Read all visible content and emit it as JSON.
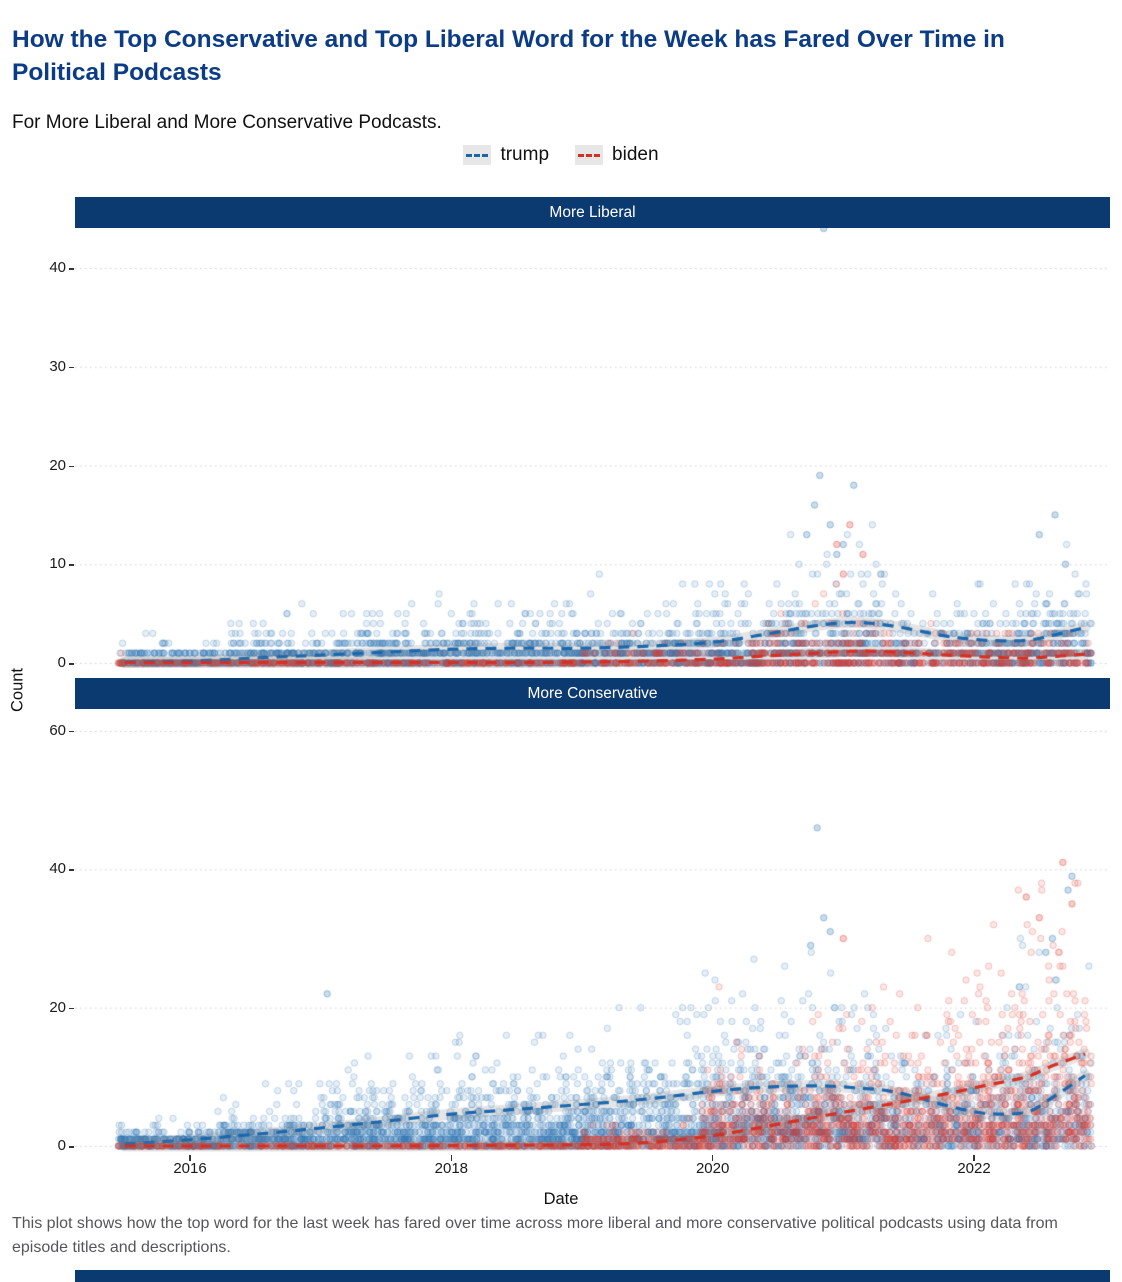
{
  "header": {
    "title": "How the Top Conservative and Top Liberal Word for the Week has Fared Over Time in Political Podcasts",
    "subtitle": "For More Liberal and More Conservative Podcasts."
  },
  "legend": {
    "items": [
      {
        "label": "trump",
        "color": "#1b67ae"
      },
      {
        "label": "biden",
        "color": "#d62f23"
      }
    ]
  },
  "caption": "This plot shows how the top word for the last week has fared over time across more liberal and more conservative political podcasts using data from episode titles and descriptions.",
  "theme": {
    "navy": "#0b3a70",
    "title_color": "#0b3c85",
    "caption_color": "#56565a",
    "grid_color": "#cfcfcf",
    "band_color": "rgba(125,125,125,0.20)"
  },
  "chart_data": {
    "type": "scatter",
    "title": "How the Top Conservative and Top Liberal Word for the Week has Fared Over Time in Political Podcasts",
    "subtitle": "For More Liberal and More Conservative Podcasts.",
    "xlabel": "Date",
    "ylabel": "Count",
    "legend_position": "top",
    "grid": "horizontal-dotted",
    "x_ticks": [
      2016,
      2018,
      2020,
      2022
    ],
    "x_domain": [
      2015.12,
      2023.04
    ],
    "point_colors": {
      "trump": "#2f76b3",
      "biden": "#df382d"
    },
    "line_colors": {
      "trump": "#1b67ae",
      "biden": "#d62f23"
    },
    "trend_x": [
      2015.5,
      2016,
      2016.5,
      2017,
      2017.5,
      2018,
      2018.5,
      2019,
      2019.5,
      2020,
      2020.4,
      2020.8,
      2021.1,
      2021.4,
      2021.8,
      2022.1,
      2022.4,
      2022.6,
      2022.85
    ],
    "facets": [
      {
        "label": "More Liberal",
        "y_ticks": [
          0,
          10,
          20,
          30,
          40
        ],
        "y_max": 44,
        "series": [
          {
            "name": "trump",
            "trend_y": [
              0.1,
              0.2,
              0.5,
              0.8,
              1.1,
              1.4,
              1.5,
              1.5,
              1.7,
              2.1,
              2.9,
              3.8,
              4.1,
              3.7,
              2.7,
              2.3,
              2.3,
              2.8,
              3.6
            ],
            "epochs": [
              {
                "x0": 2015.45,
                "x1": 2016.3,
                "n": 260,
                "mean": 0.5,
                "max": 3
              },
              {
                "x0": 2016.3,
                "x1": 2017.2,
                "n": 320,
                "mean": 0.9,
                "max": 6
              },
              {
                "x0": 2017.2,
                "x1": 2018.4,
                "n": 480,
                "mean": 1.3,
                "max": 8
              },
              {
                "x0": 2018.4,
                "x1": 2019.6,
                "n": 460,
                "mean": 1.4,
                "max": 9
              },
              {
                "x0": 2019.6,
                "x1": 2020.4,
                "n": 360,
                "mean": 1.5,
                "max": 8
              },
              {
                "x0": 2020.4,
                "x1": 2021.4,
                "n": 420,
                "mean": 2.6,
                "max": 16
              },
              {
                "x0": 2021.4,
                "x1": 2022.3,
                "n": 300,
                "mean": 1.6,
                "max": 9
              },
              {
                "x0": 2022.3,
                "x1": 2022.9,
                "n": 260,
                "mean": 2.2,
                "max": 12
              }
            ],
            "outliers": [
              [
                2020.82,
                19
              ],
              [
                2021.08,
                18
              ],
              [
                2020.78,
                16
              ],
              [
                2020.9,
                14
              ],
              [
                2020.72,
                13
              ],
              [
                2022.62,
                15
              ],
              [
                2022.5,
                13
              ],
              [
                2021.0,
                12
              ],
              [
                2020.95,
                11
              ],
              [
                2022.7,
                10
              ],
              [
                2020.85,
                44
              ]
            ]
          },
          {
            "name": "biden",
            "trend_y": [
              0.05,
              0.05,
              0.05,
              0.05,
              0.05,
              0.05,
              0.05,
              0.1,
              0.2,
              0.4,
              0.7,
              1.0,
              1.2,
              1.1,
              0.8,
              0.6,
              0.5,
              0.65,
              0.9
            ],
            "epochs": [
              {
                "x0": 2015.45,
                "x1": 2019.0,
                "n": 320,
                "mean": 0.08,
                "max": 1
              },
              {
                "x0": 2019.0,
                "x1": 2020.3,
                "n": 160,
                "mean": 0.5,
                "max": 3
              },
              {
                "x0": 2020.3,
                "x1": 2021.4,
                "n": 260,
                "mean": 1.2,
                "max": 10
              },
              {
                "x0": 2021.4,
                "x1": 2022.9,
                "n": 260,
                "mean": 0.8,
                "max": 6
              }
            ],
            "outliers": [
              [
                2021.05,
                14
              ],
              [
                2020.95,
                12
              ],
              [
                2021.15,
                11
              ],
              [
                2021.0,
                9
              ]
            ]
          }
        ]
      },
      {
        "label": "More Conservative",
        "y_ticks": [
          0,
          20,
          40,
          60
        ],
        "y_max": 63,
        "series": [
          {
            "name": "trump",
            "trend_y": [
              0.3,
              0.9,
              1.7,
              2.6,
              3.6,
              4.6,
              5.3,
              6.0,
              6.8,
              7.9,
              8.5,
              8.7,
              8.4,
              7.8,
              5.8,
              4.7,
              4.9,
              7.0,
              10.2
            ],
            "epochs": [
              {
                "x0": 2015.45,
                "x1": 2016.2,
                "n": 300,
                "mean": 0.8,
                "max": 4
              },
              {
                "x0": 2016.2,
                "x1": 2017.0,
                "n": 360,
                "mean": 1.6,
                "max": 9
              },
              {
                "x0": 2017.0,
                "x1": 2018.0,
                "n": 520,
                "mean": 2.6,
                "max": 13
              },
              {
                "x0": 2018.0,
                "x1": 2019.0,
                "n": 560,
                "mean": 3.2,
                "max": 16
              },
              {
                "x0": 2019.0,
                "x1": 2019.9,
                "n": 520,
                "mean": 4.0,
                "max": 20
              },
              {
                "x0": 2019.9,
                "x1": 2020.6,
                "n": 460,
                "mean": 5.0,
                "max": 27
              },
              {
                "x0": 2020.6,
                "x1": 2021.3,
                "n": 420,
                "mean": 5.0,
                "max": 33
              },
              {
                "x0": 2021.3,
                "x1": 2022.2,
                "n": 400,
                "mean": 3.8,
                "max": 20
              },
              {
                "x0": 2022.2,
                "x1": 2022.9,
                "n": 360,
                "mean": 5.5,
                "max": 30
              }
            ],
            "outliers": [
              [
                2020.8,
                46
              ],
              [
                2017.05,
                22
              ],
              [
                2022.75,
                39
              ],
              [
                2022.72,
                37
              ],
              [
                2022.6,
                30
              ],
              [
                2020.85,
                33
              ],
              [
                2020.9,
                31
              ],
              [
                2022.55,
                28
              ],
              [
                2020.75,
                29
              ]
            ]
          },
          {
            "name": "biden",
            "trend_y": [
              0.0,
              0.0,
              0.0,
              0.0,
              0.0,
              0.05,
              0.1,
              0.2,
              0.5,
              1.5,
              2.8,
              4.2,
              5.2,
              6.2,
              7.6,
              8.8,
              10.0,
              11.6,
              13.3
            ],
            "epochs": [
              {
                "x0": 2015.45,
                "x1": 2019.0,
                "n": 280,
                "mean": 0.08,
                "max": 1
              },
              {
                "x0": 2019.0,
                "x1": 2019.9,
                "n": 200,
                "mean": 0.7,
                "max": 4
              },
              {
                "x0": 2019.9,
                "x1": 2020.7,
                "n": 300,
                "mean": 3.5,
                "max": 23
              },
              {
                "x0": 2020.7,
                "x1": 2021.5,
                "n": 360,
                "mean": 5.0,
                "max": 28
              },
              {
                "x0": 2021.5,
                "x1": 2022.3,
                "n": 380,
                "mean": 6.0,
                "max": 32
              },
              {
                "x0": 2022.3,
                "x1": 2022.9,
                "n": 320,
                "mean": 8.0,
                "max": 38
              }
            ],
            "outliers": [
              [
                2022.68,
                41
              ],
              [
                2022.4,
                36
              ],
              [
                2021.0,
                30
              ],
              [
                2022.75,
                35
              ],
              [
                2022.5,
                33
              ]
            ]
          }
        ]
      }
    ]
  }
}
